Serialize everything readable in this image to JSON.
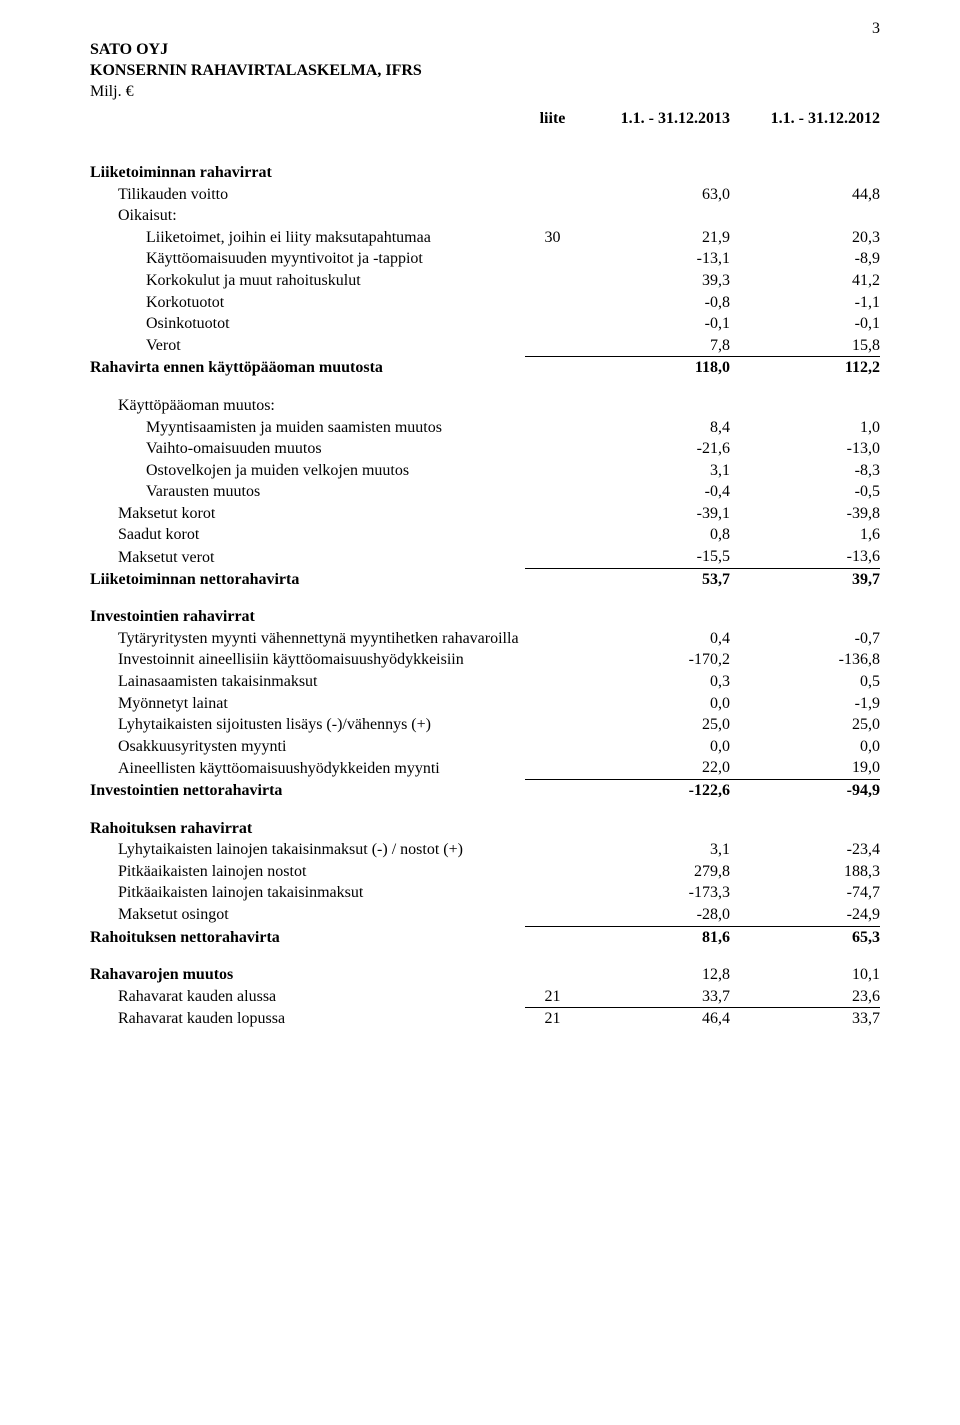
{
  "page_number": "3",
  "header": {
    "company": "SATO OYJ",
    "statement": "KONSERNIN RAHAVIRTALASKELMA, IFRS",
    "unit": "Milj. €"
  },
  "columns": {
    "liite": "liite",
    "period1": "1.1. - 31.12.2013",
    "period2": "1.1. - 31.12.2012"
  },
  "s1": {
    "title": "Liiketoiminnan rahavirrat",
    "r1": {
      "label": "Tilikauden voitto",
      "v1": "63,0",
      "v2": "44,8"
    },
    "r2": {
      "label": "Oikaisut:"
    },
    "r3": {
      "label": "Liiketoimet, joihin ei liity maksutapahtumaa",
      "liite": "30",
      "v1": "21,9",
      "v2": "20,3"
    },
    "r4": {
      "label": "Käyttöomaisuuden myyntivoitot ja -tappiot",
      "v1": "-13,1",
      "v2": "-8,9"
    },
    "r5": {
      "label": "Korkokulut ja muut rahoituskulut",
      "v1": "39,3",
      "v2": "41,2"
    },
    "r6": {
      "label": "Korkotuotot",
      "v1": "-0,8",
      "v2": "-1,1"
    },
    "r7": {
      "label": "Osinkotuotot",
      "v1": "-0,1",
      "v2": "-0,1"
    },
    "r8": {
      "label": "Verot",
      "v1": "7,8",
      "v2": "15,8"
    },
    "sum": {
      "label": "Rahavirta ennen käyttöpääoman muutosta",
      "v1": "118,0",
      "v2": "112,2"
    }
  },
  "s2": {
    "title": "Käyttöpääoman muutos:",
    "r1": {
      "label": "Myyntisaamisten ja muiden saamisten muutos",
      "v1": "8,4",
      "v2": "1,0"
    },
    "r2": {
      "label": "Vaihto-omaisuuden muutos",
      "v1": "-21,6",
      "v2": "-13,0"
    },
    "r3": {
      "label": "Ostovelkojen ja muiden velkojen muutos",
      "v1": "3,1",
      "v2": "-8,3"
    },
    "r4": {
      "label": "Varausten muutos",
      "v1": "-0,4",
      "v2": "-0,5"
    },
    "r5": {
      "label": "Maksetut korot",
      "v1": "-39,1",
      "v2": "-39,8"
    },
    "r6": {
      "label": "Saadut korot",
      "v1": "0,8",
      "v2": "1,6"
    },
    "r7": {
      "label": "Maksetut verot",
      "v1": "-15,5",
      "v2": "-13,6"
    },
    "sum": {
      "label": "Liiketoiminnan nettorahavirta",
      "v1": "53,7",
      "v2": "39,7"
    }
  },
  "s3": {
    "title": "Investointien rahavirrat",
    "r1": {
      "label": "Tytäryritysten myynti vähennettynä myyntihetken rahavaroilla",
      "v1": "0,4",
      "v2": "-0,7"
    },
    "r2": {
      "label": "Investoinnit aineellisiin käyttöomaisuushyödykkeisiin",
      "v1": "-170,2",
      "v2": "-136,8"
    },
    "r3": {
      "label": "Lainasaamisten takaisinmaksut",
      "v1": "0,3",
      "v2": "0,5"
    },
    "r4": {
      "label": "Myönnetyt lainat",
      "v1": "0,0",
      "v2": "-1,9"
    },
    "r5": {
      "label": "Lyhytaikaisten sijoitusten lisäys (-)/vähennys (+)",
      "v1": "25,0",
      "v2": "25,0"
    },
    "r6": {
      "label": "Osakkuusyritysten myynti",
      "v1": "0,0",
      "v2": "0,0"
    },
    "r7": {
      "label": "Aineellisten käyttöomaisuushyödykkeiden myynti",
      "v1": "22,0",
      "v2": "19,0"
    },
    "sum": {
      "label": "Investointien nettorahavirta",
      "v1": "-122,6",
      "v2": "-94,9"
    }
  },
  "s4": {
    "title": "Rahoituksen rahavirrat",
    "r1": {
      "label": "Lyhytaikaisten lainojen takaisinmaksut (-) / nostot (+)",
      "v1": "3,1",
      "v2": "-23,4"
    },
    "r2": {
      "label": "Pitkäaikaisten lainojen nostot",
      "v1": "279,8",
      "v2": "188,3"
    },
    "r3": {
      "label": "Pitkäaikaisten lainojen takaisinmaksut",
      "v1": "-173,3",
      "v2": "-74,7"
    },
    "r4": {
      "label": "Maksetut osingot",
      "v1": "-28,0",
      "v2": "-24,9"
    },
    "sum": {
      "label": "Rahoituksen nettorahavirta",
      "v1": "81,6",
      "v2": "65,3"
    }
  },
  "s5": {
    "r1": {
      "label": "Rahavarojen muutos",
      "v1": "12,8",
      "v2": "10,1"
    },
    "r2": {
      "label": "Rahavarat kauden alussa",
      "liite": "21",
      "v1": "33,7",
      "v2": "23,6"
    },
    "r3": {
      "label": "Rahavarat kauden lopussa",
      "liite": "21",
      "v1": "46,4",
      "v2": "33,7"
    }
  }
}
